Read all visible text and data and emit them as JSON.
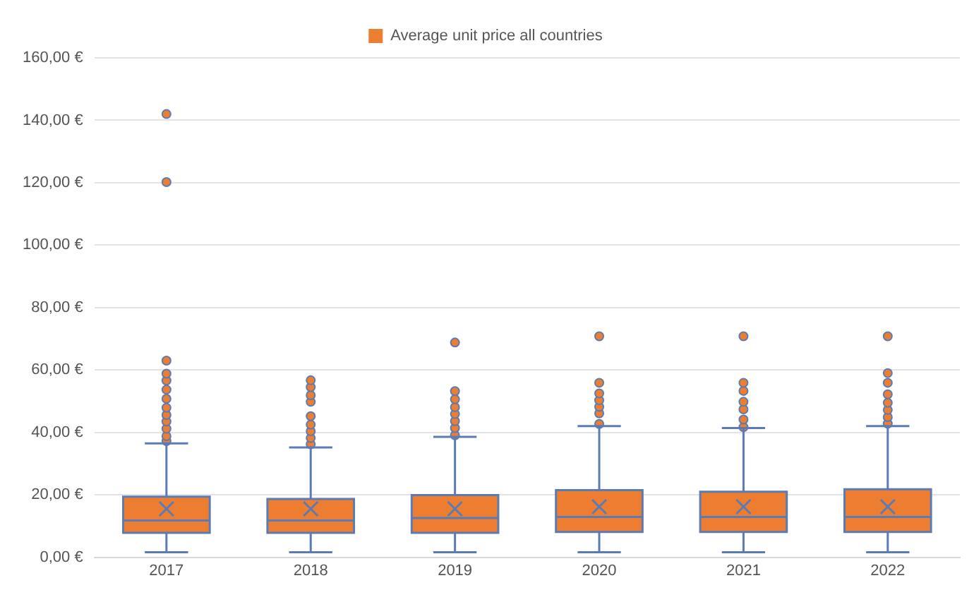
{
  "chart_data": {
    "type": "box",
    "categories": [
      "2017",
      "2018",
      "2019",
      "2020",
      "2021",
      "2022"
    ],
    "series": [
      {
        "name": "Average unit price all countries",
        "color": "#ed7d31",
        "boxes": [
          {
            "low": 1.6,
            "q1": 7.8,
            "median": 11.8,
            "q3": 19.4,
            "high": 36.5,
            "mean": 15.5,
            "outliers": [
              37.2,
              38.8,
              41.2,
              43.5,
              45.6,
              47.9,
              50.8,
              53.7,
              56.6,
              58.8,
              63.0,
              120.2,
              142.0
            ]
          },
          {
            "low": 1.6,
            "q1": 7.8,
            "median": 11.8,
            "q3": 18.7,
            "high": 35.2,
            "mean": 15.5,
            "outliers": [
              36.2,
              38.2,
              40.4,
              42.5,
              45.2,
              49.8,
              51.9,
              54.5,
              56.7
            ]
          },
          {
            "low": 1.6,
            "q1": 7.8,
            "median": 12.6,
            "q3": 19.9,
            "high": 38.6,
            "mean": 15.5,
            "outliers": [
              39.1,
              41.4,
              43.6,
              45.9,
              48.1,
              50.6,
              53.2,
              68.8
            ]
          },
          {
            "low": 1.6,
            "q1": 8.1,
            "median": 12.9,
            "q3": 21.5,
            "high": 42.0,
            "mean": 16.2,
            "outliers": [
              42.7,
              46.1,
              48.2,
              50.3,
              52.5,
              55.9,
              70.8
            ]
          },
          {
            "low": 1.6,
            "q1": 8.1,
            "median": 12.9,
            "q3": 21.0,
            "high": 41.4,
            "mean": 16.2,
            "outliers": [
              41.7,
              44.1,
              47.4,
              49.8,
              53.3,
              55.9,
              70.8
            ]
          },
          {
            "low": 1.6,
            "q1": 8.1,
            "median": 12.9,
            "q3": 21.8,
            "high": 42.0,
            "mean": 16.2,
            "outliers": [
              42.8,
              44.9,
              47.2,
              49.5,
              52.2,
              55.9,
              59.0,
              70.8
            ]
          }
        ]
      }
    ],
    "ylim": [
      0,
      160
    ],
    "yticks": [
      {
        "value": 0,
        "label": "0,00 €"
      },
      {
        "value": 20,
        "label": "20,00 €"
      },
      {
        "value": 40,
        "label": "40,00 €"
      },
      {
        "value": 60,
        "label": "60,00 €"
      },
      {
        "value": 80,
        "label": "80,00 €"
      },
      {
        "value": 100,
        "label": "100,00 €"
      },
      {
        "value": 120,
        "label": "120,00 €"
      },
      {
        "value": 140,
        "label": "140,00 €"
      },
      {
        "value": 160,
        "label": "160,00 €"
      }
    ],
    "grid": "y",
    "legend": "top",
    "marker": "circle"
  }
}
